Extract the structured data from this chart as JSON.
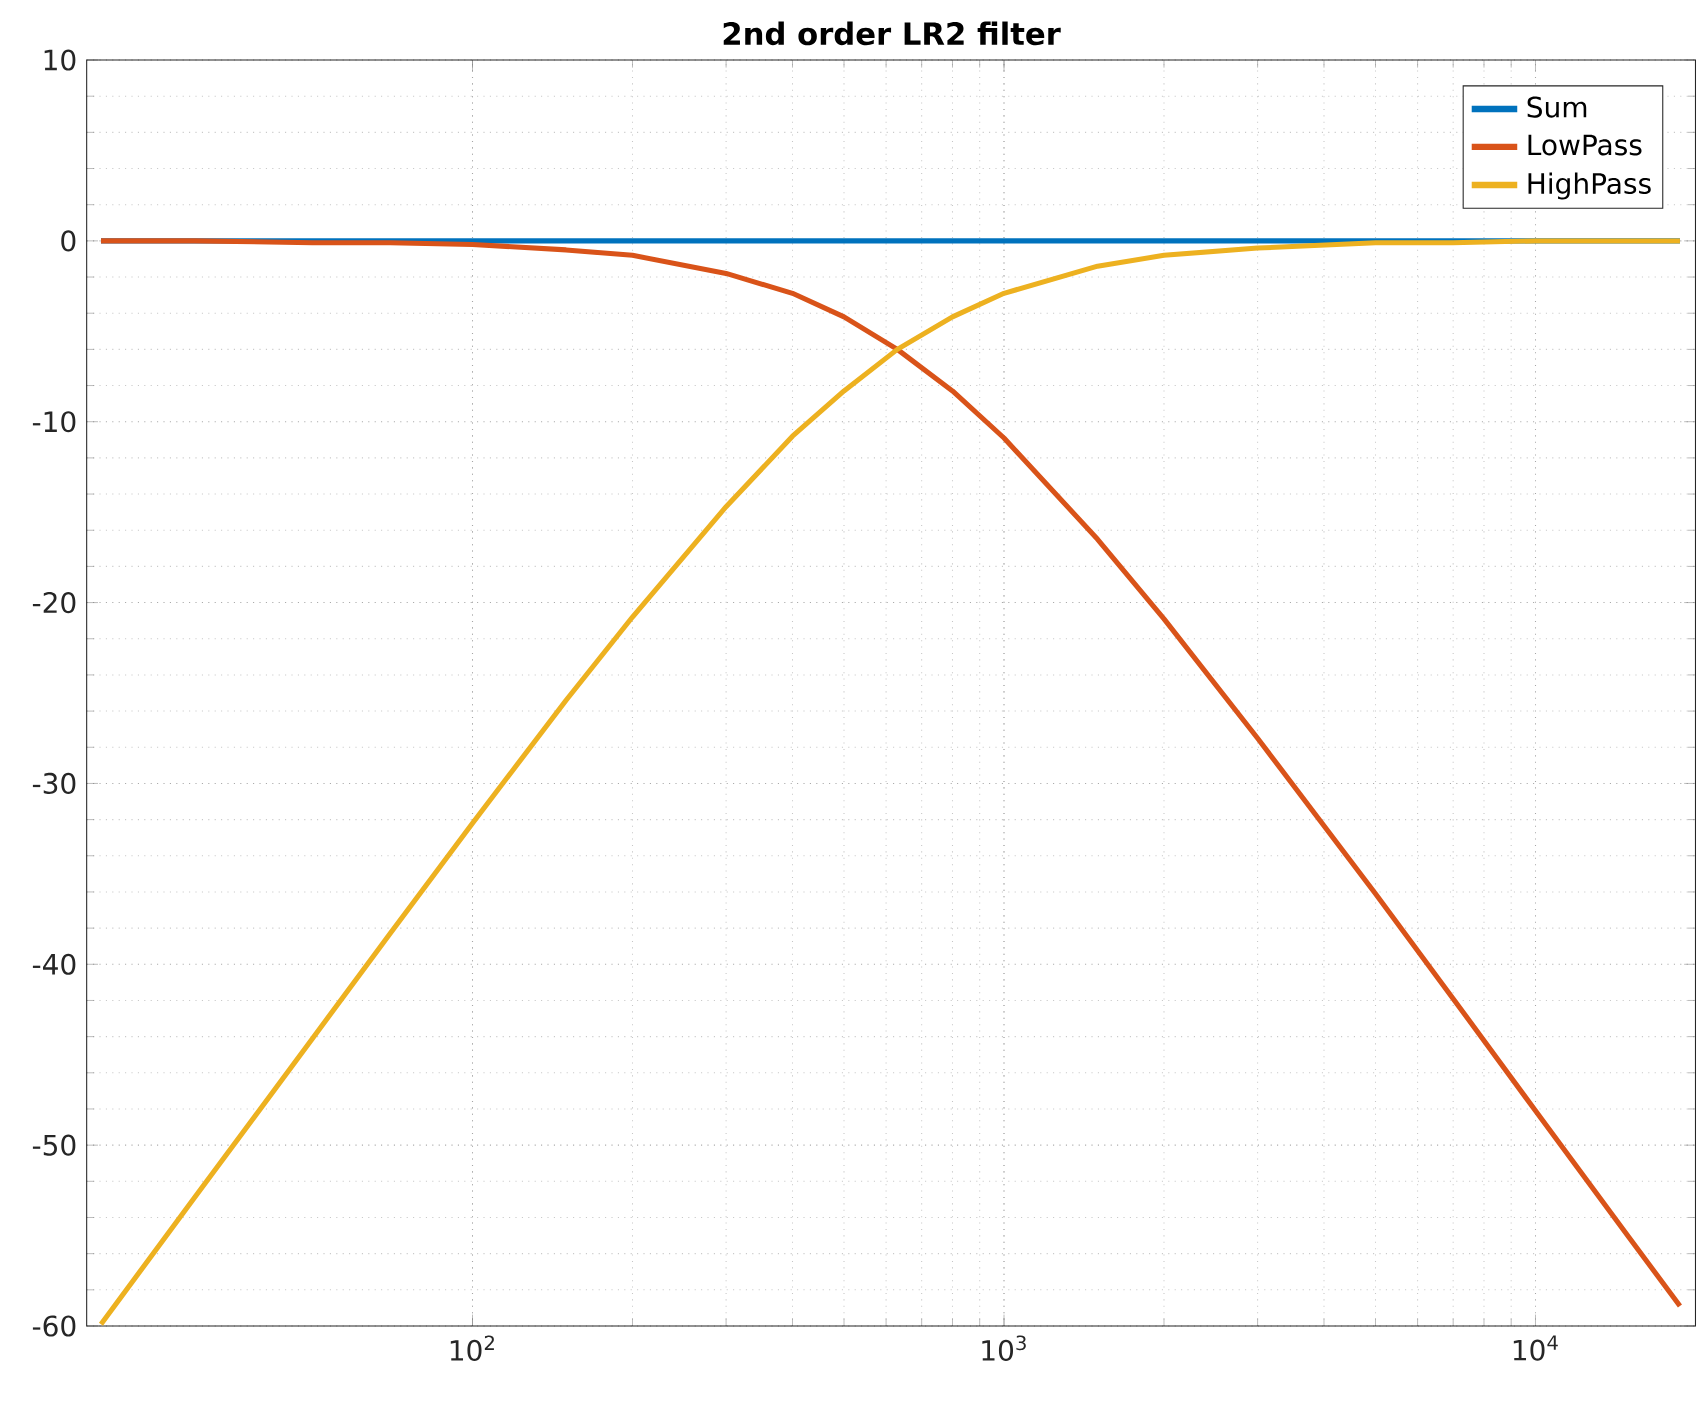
{
  "chart_data": {
    "type": "line",
    "title": "2nd order LR2 filter",
    "x": [
      20,
      30,
      50,
      70,
      100,
      150,
      200,
      300,
      400,
      500,
      630,
      800,
      1000,
      1500,
      2000,
      3000,
      5000,
      7000,
      10000,
      15000,
      18700
    ],
    "series": [
      {
        "name": "Sum",
        "color": "#0072bd",
        "values": [
          0,
          0,
          0,
          0,
          0,
          0,
          0,
          0,
          0,
          0,
          0,
          0,
          0,
          0,
          0,
          0,
          0,
          0,
          0,
          0,
          0
        ]
      },
      {
        "name": "LowPass",
        "color": "#d95319",
        "values": [
          0,
          0,
          -0.1,
          -0.1,
          -0.2,
          -0.5,
          -0.8,
          -1.8,
          -2.9,
          -4.2,
          -6,
          -8.3,
          -10.9,
          -16.5,
          -20.9,
          -27.5,
          -36.1,
          -41.9,
          -48.1,
          -55.1,
          -58.9
        ]
      },
      {
        "name": "HighPass",
        "color": "#edb120",
        "values": [
          -59.9,
          -52.9,
          -44.1,
          -38.3,
          -32.2,
          -25.4,
          -20.8,
          -14.7,
          -10.8,
          -8.3,
          -6,
          -4.2,
          -2.9,
          -1.4,
          -0.8,
          -0.4,
          -0.1,
          -0.1,
          0,
          0,
          0
        ]
      }
    ],
    "log": "x",
    "xlim": [
      18.8,
      20000
    ],
    "ylim": [
      -60,
      10
    ],
    "xticks": [
      {
        "value": 100,
        "label": "10$^{2}$"
      },
      {
        "value": 1000,
        "label": "10$^{3}$"
      },
      {
        "value": 10000,
        "label": "10$^{4}$"
      }
    ],
    "yticks": [
      -60,
      -50,
      -40,
      -30,
      -20,
      -10,
      0,
      10
    ],
    "grid": true,
    "legend": "top right",
    "line_style": "solid",
    "marker": "none"
  }
}
